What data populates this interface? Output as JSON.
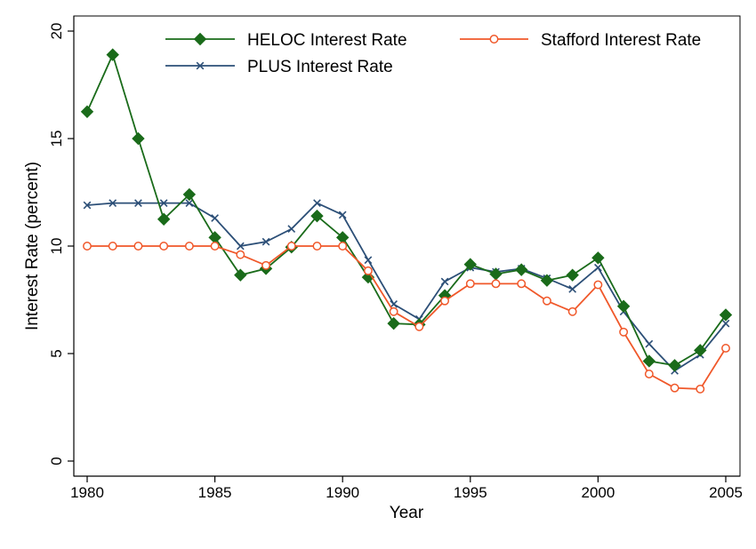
{
  "chart_data": {
    "type": "line",
    "xlabel": "Year",
    "ylabel": "Interest Rate (percent)",
    "xlim": [
      1980,
      2005
    ],
    "ylim": [
      0,
      20
    ],
    "xticks": [
      "1980",
      "1985",
      "1990",
      "1995",
      "2000",
      "2005"
    ],
    "yticks": [
      "0",
      "5",
      "10",
      "15",
      "20"
    ],
    "grid": false,
    "legend_position": "top",
    "x": [
      1980,
      1981,
      1982,
      1983,
      1984,
      1985,
      1986,
      1987,
      1988,
      1989,
      1990,
      1991,
      1992,
      1993,
      1994,
      1995,
      1996,
      1997,
      1998,
      1999,
      2000,
      2001,
      2002,
      2003,
      2004,
      2005
    ],
    "series": [
      {
        "name": "HELOC Interest Rate",
        "color": "#1a6b1a",
        "marker": "diamond",
        "values": [
          16.25,
          18.9,
          15.0,
          11.25,
          12.4,
          10.4,
          8.65,
          8.95,
          9.95,
          11.4,
          10.4,
          8.55,
          6.4,
          6.35,
          7.7,
          9.15,
          8.7,
          8.9,
          8.4,
          8.65,
          9.45,
          7.2,
          4.65,
          4.45,
          5.15,
          6.8
        ]
      },
      {
        "name": "Stafford Interest Rate",
        "color": "#f0582a",
        "marker": "circle",
        "values": [
          10.0,
          10.0,
          10.0,
          10.0,
          10.0,
          10.0,
          9.6,
          9.1,
          10.0,
          10.0,
          10.0,
          8.85,
          6.95,
          6.25,
          7.45,
          8.25,
          8.25,
          8.25,
          7.45,
          6.95,
          8.2,
          6.0,
          4.05,
          3.4,
          3.35,
          5.25
        ]
      },
      {
        "name": "PLUS Interest Rate",
        "color": "#2c4f77",
        "marker": "x",
        "values": [
          11.9,
          12.0,
          12.0,
          12.0,
          12.0,
          11.3,
          10.0,
          10.2,
          10.8,
          12.0,
          11.45,
          9.35,
          7.3,
          6.6,
          8.35,
          9.0,
          8.8,
          8.95,
          8.5,
          8.0,
          9.0,
          6.95,
          5.45,
          4.2,
          4.95,
          6.4
        ]
      }
    ]
  }
}
